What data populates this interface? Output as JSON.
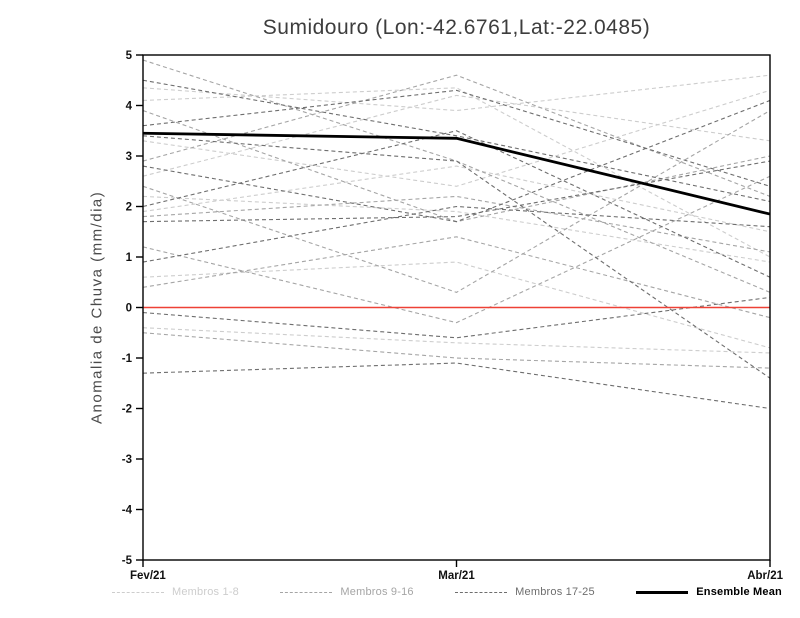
{
  "title": "Sumidouro (Lon:-42.6761,Lat:-22.0485)",
  "chart_data": {
    "type": "line",
    "title": "Sumidouro (Lon:-42.6761,Lat:-22.0485)",
    "xlabel": "",
    "ylabel": "Anomalia de Chuva (mm/dia)",
    "categories": [
      "Fev/21",
      "Mar/21",
      "Abr/21"
    ],
    "ylim": [
      -5,
      5
    ],
    "y_ticks": [
      -5,
      -4,
      -3,
      -2,
      -1,
      0,
      1,
      2,
      3,
      4,
      5
    ],
    "grid": false,
    "legend_position": "bottom",
    "zero_line": {
      "value": 0,
      "color": "#ee4136"
    },
    "groups": [
      {
        "name": "Membros 1-8",
        "color": "#cdcdcd",
        "dash": true
      },
      {
        "name": "Membros 9-16",
        "color": "#a5a5a5",
        "dash": true
      },
      {
        "name": "Membros 17-25",
        "color": "#6e6e6e",
        "dash": true
      },
      {
        "name": "Ensemble Mean",
        "color": "#000000",
        "dash": false
      }
    ],
    "series": [
      {
        "group": 0,
        "values": [
          4.35,
          3.9,
          4.6
        ]
      },
      {
        "group": 0,
        "values": [
          4.1,
          4.35,
          1.0
        ]
      },
      {
        "group": 0,
        "values": [
          2.6,
          4.2,
          3.3
        ]
      },
      {
        "group": 0,
        "values": [
          2.2,
          1.9,
          0.9
        ]
      },
      {
        "group": 0,
        "values": [
          1.9,
          2.8,
          1.5
        ]
      },
      {
        "group": 0,
        "values": [
          0.6,
          0.9,
          -0.8
        ]
      },
      {
        "group": 0,
        "values": [
          -0.4,
          -0.7,
          -0.9
        ]
      },
      {
        "group": 0,
        "values": [
          3.3,
          2.4,
          4.3
        ]
      },
      {
        "group": 1,
        "values": [
          4.9,
          2.9,
          0.3
        ]
      },
      {
        "group": 1,
        "values": [
          3.9,
          1.7,
          3.0
        ]
      },
      {
        "group": 1,
        "values": [
          2.9,
          4.6,
          2.2
        ]
      },
      {
        "group": 1,
        "values": [
          1.8,
          2.2,
          1.1
        ]
      },
      {
        "group": 1,
        "values": [
          1.2,
          -0.3,
          2.6
        ]
      },
      {
        "group": 1,
        "values": [
          0.4,
          1.4,
          -0.2
        ]
      },
      {
        "group": 1,
        "values": [
          -0.5,
          -1.0,
          -1.2
        ]
      },
      {
        "group": 1,
        "values": [
          2.4,
          0.3,
          3.9
        ]
      },
      {
        "group": 2,
        "values": [
          4.5,
          3.4,
          2.1
        ]
      },
      {
        "group": 2,
        "values": [
          3.4,
          2.9,
          -1.4
        ]
      },
      {
        "group": 2,
        "values": [
          2.0,
          3.5,
          0.6
        ]
      },
      {
        "group": 2,
        "values": [
          1.7,
          1.8,
          2.9
        ]
      },
      {
        "group": 2,
        "values": [
          0.9,
          2.0,
          1.6
        ]
      },
      {
        "group": 2,
        "values": [
          -0.1,
          -0.6,
          0.2
        ]
      },
      {
        "group": 2,
        "values": [
          -1.3,
          -1.1,
          -2.0
        ]
      },
      {
        "group": 2,
        "values": [
          2.8,
          1.7,
          4.1
        ]
      },
      {
        "group": 2,
        "values": [
          3.6,
          4.3,
          2.4
        ]
      }
    ],
    "ensemble_mean": [
      3.45,
      3.35,
      1.85
    ]
  },
  "legend": {
    "items": [
      {
        "label": "Membros 1-8"
      },
      {
        "label": "Membros 9-16"
      },
      {
        "label": "Membros 17-25"
      },
      {
        "label": "Ensemble Mean"
      }
    ]
  }
}
